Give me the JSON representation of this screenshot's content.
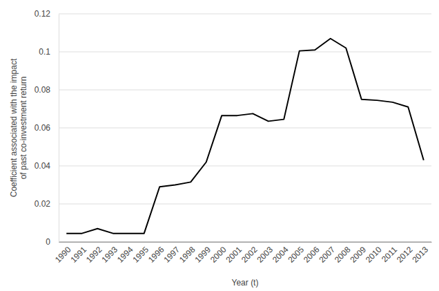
{
  "chart_data": {
    "type": "line",
    "xlabel": "Year (t)",
    "ylabel": [
      "Coefficient associated with the impact",
      "of past co-investment return"
    ],
    "categories": [
      "1990",
      "1991",
      "1992",
      "1993",
      "1994",
      "1995",
      "1996",
      "1997",
      "1998",
      "1999",
      "2000",
      "2001",
      "2002",
      "2003",
      "2004",
      "2005",
      "2006",
      "2007",
      "2008",
      "2009",
      "2010",
      "2011",
      "2012",
      "2013"
    ],
    "values": [
      0.0045,
      0.0045,
      0.007,
      0.0045,
      0.0045,
      0.0045,
      0.029,
      0.03,
      0.0315,
      0.042,
      0.0665,
      0.0665,
      0.0675,
      0.0635,
      0.0645,
      0.1005,
      0.101,
      0.107,
      0.102,
      0.075,
      0.0745,
      0.0735,
      0.071,
      0.043
    ],
    "color": "#000000",
    "ylim": [
      0,
      0.12
    ],
    "yticks": [
      0,
      0.02,
      0.04,
      0.06,
      0.08,
      0.1,
      0.12
    ],
    "grid": true
  }
}
